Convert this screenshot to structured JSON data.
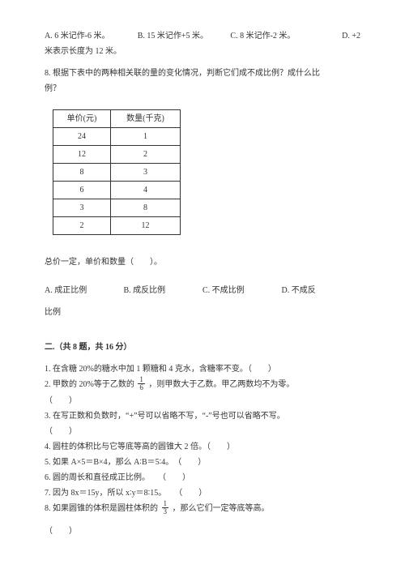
{
  "q7": {
    "option_a": "A. 6 米记作-6 米。",
    "option_b": "B. 15 米记作+5 米。",
    "option_c": "C. 8 米记作-2 米。",
    "option_d": "D. +2",
    "cont": "米表示长度为 12 米。"
  },
  "q8": {
    "prompt1": "8. 根据下表中的两种相关联的量的变化情况，判断它们成不成比例？成什么比",
    "prompt2": "例？",
    "table": {
      "h1": "单价(元)",
      "h2": "数量(千克)",
      "rows": [
        [
          "24",
          "1"
        ],
        [
          "12",
          "2"
        ],
        [
          "8",
          "3"
        ],
        [
          "6",
          "4"
        ],
        [
          "3",
          "8"
        ],
        [
          "2",
          "12"
        ]
      ]
    },
    "sub": "总价一定，单价和数量（　　）。",
    "option_a": "A. 成正比例",
    "option_b": "B. 成反比例",
    "option_c": "C. 不成比例",
    "option_d": "D. 不成反",
    "option_d_cont": "比例"
  },
  "section2": {
    "title": "二.（共 8 题，共 16 分）"
  },
  "s2": {
    "q1": "1. 在含糖 20%的糖水中加 1 颗糖和 4 克水，含糖率不变。（　　）",
    "q2a": "2. 甲数的 20%等于乙数的 ",
    "q2_frac_num": "1",
    "q2_frac_den": "6",
    "q2b": " ，则甲数大于乙数。甲乙两数均不为零。",
    "q2c": "（　　）",
    "q3": "3. 在写正数和负数时，“+”号可以省略不写，“-”号也可以省略不写。",
    "q3b": "（　　）",
    "q4": "4. 圆柱的体积比与它等底等高的圆锥大 2 倍。（　　）",
    "q5": "5. 如果 A×5＝B×4，那么 A∶B＝5∶4。　（　　）",
    "q6": "6. 圆的周长和直径成正比例。　　（　　）",
    "q7": "7. 因为 8x＝15y，所以 x∶y＝8∶15。　　（　　）",
    "q8a": "8. 如果圆锥的体积是圆柱体积的 ",
    "q8_frac_num": "1",
    "q8_frac_den": "3",
    "q8b": " ，那么它们一定等底等高。",
    "q8c": "（　　）"
  }
}
